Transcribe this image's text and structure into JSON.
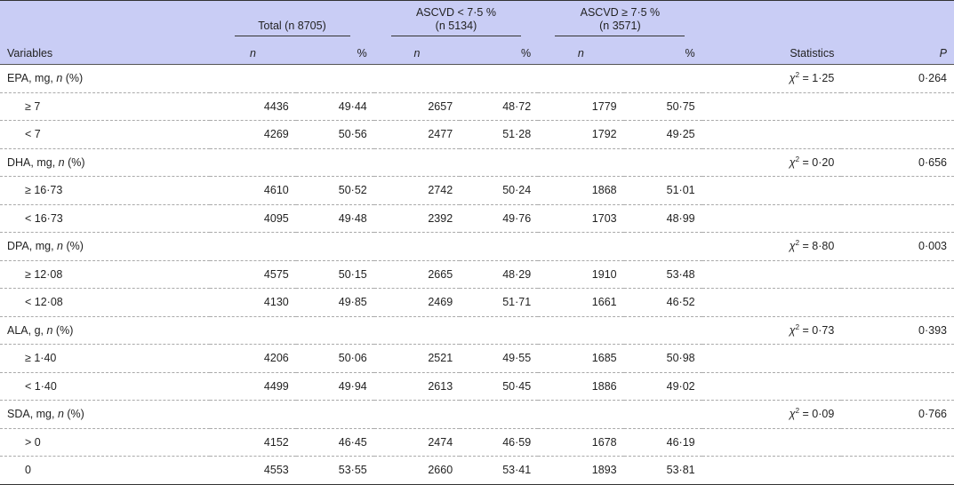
{
  "header": {
    "total": "Total (n 8705)",
    "g1_line1": "ASCVD < 7·5 %",
    "g1_line2": "(n 5134)",
    "g2_line1": "ASCVD ≥ 7·5 %",
    "g2_line2": "(n 3571)",
    "variables": "Variables",
    "n": "n",
    "pct": "%",
    "statistics": "Statistics",
    "p": "P"
  },
  "groups": [
    {
      "label": "EPA, mg, n (%)",
      "stat": "χ2 = 1·25",
      "p": "0·264",
      "rows": [
        {
          "label": "≥ 7",
          "tn": "4436",
          "tp": "49·44",
          "an": "2657",
          "ap": "48·72",
          "bn": "1779",
          "bp": "50·75"
        },
        {
          "label": "< 7",
          "tn": "4269",
          "tp": "50·56",
          "an": "2477",
          "ap": "51·28",
          "bn": "1792",
          "bp": "49·25"
        }
      ]
    },
    {
      "label": "DHA, mg, n (%)",
      "stat": "χ2 = 0·20",
      "p": "0·656",
      "rows": [
        {
          "label": "≥ 16·73",
          "tn": "4610",
          "tp": "50·52",
          "an": "2742",
          "ap": "50·24",
          "bn": "1868",
          "bp": "51·01"
        },
        {
          "label": "< 16·73",
          "tn": "4095",
          "tp": "49·48",
          "an": "2392",
          "ap": "49·76",
          "bn": "1703",
          "bp": "48·99"
        }
      ]
    },
    {
      "label": "DPA, mg, n (%)",
      "stat": "χ2 = 8·80",
      "p": "0·003",
      "rows": [
        {
          "label": "≥ 12·08",
          "tn": "4575",
          "tp": "50·15",
          "an": "2665",
          "ap": "48·29",
          "bn": "1910",
          "bp": "53·48"
        },
        {
          "label": "< 12·08",
          "tn": "4130",
          "tp": "49·85",
          "an": "2469",
          "ap": "51·71",
          "bn": "1661",
          "bp": "46·52"
        }
      ]
    },
    {
      "label": "ALA, g, n (%)",
      "stat": "χ2 = 0·73",
      "p": "0·393",
      "rows": [
        {
          "label": "≥ 1·40",
          "tn": "4206",
          "tp": "50·06",
          "an": "2521",
          "ap": "49·55",
          "bn": "1685",
          "bp": "50·98"
        },
        {
          "label": "< 1·40",
          "tn": "4499",
          "tp": "49·94",
          "an": "2613",
          "ap": "50·45",
          "bn": "1886",
          "bp": "49·02"
        }
      ]
    },
    {
      "label": "SDA, mg, n (%)",
      "stat": "χ2 = 0·09",
      "p": "0·766",
      "rows": [
        {
          "label": "> 0",
          "tn": "4152",
          "tp": "46·45",
          "an": "2474",
          "ap": "46·59",
          "bn": "1678",
          "bp": "46·19"
        },
        {
          "label": "0",
          "tn": "4553",
          "tp": "53·55",
          "an": "2660",
          "ap": "53·41",
          "bn": "1893",
          "bp": "53·81"
        }
      ]
    }
  ]
}
